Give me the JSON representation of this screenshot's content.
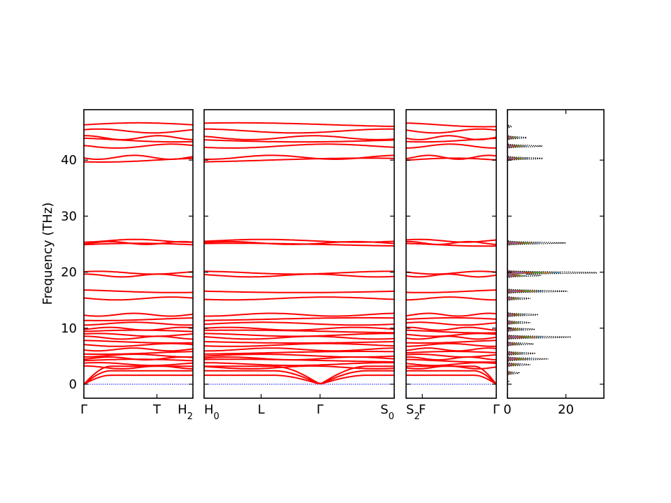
{
  "chart_data": {
    "type": "line",
    "ylabel": "Frequency (THz)",
    "ylim": [
      -2.5,
      49
    ],
    "yticks": [
      0,
      10,
      20,
      30,
      40
    ],
    "colors": {
      "band": "#ff0000",
      "zero_line": "#0000ff",
      "dos_series": [
        "#1f77b4",
        "#ff7f0e",
        "#2ca02c",
        "#d62728",
        "#9467bd",
        "#8c564b"
      ],
      "dos_total": "#000000"
    },
    "band_panels": [
      {
        "name": "Γ-T-H2",
        "path_labels": [
          {
            "pos": 0.0,
            "main": "Γ",
            "sub": ""
          },
          {
            "pos": 0.67,
            "main": "T",
            "sub": ""
          },
          {
            "pos": 1.0,
            "main": "H",
            "sub": "2"
          }
        ]
      },
      {
        "name": "H0-L-Γ-S0",
        "path_labels": [
          {
            "pos": 0.0,
            "main": "H",
            "sub": "0"
          },
          {
            "pos": 0.3,
            "main": "L",
            "sub": ""
          },
          {
            "pos": 0.61,
            "main": "Γ",
            "sub": ""
          },
          {
            "pos": 1.0,
            "main": "S",
            "sub": "0"
          }
        ]
      },
      {
        "name": "S2-F-Γ",
        "path_labels": [
          {
            "pos": 0.0,
            "main": "S",
            "sub": "2"
          },
          {
            "pos": 0.18,
            "main": "F",
            "sub": ""
          },
          {
            "pos": 1.0,
            "main": "Γ",
            "sub": ""
          }
        ]
      }
    ],
    "optical_bands_THz": [
      46.3,
      45.2,
      44.0,
      43.6,
      42.5,
      40.5,
      40.0,
      25.6,
      25.2,
      24.9,
      19.9,
      19.4,
      16.6,
      15.3,
      12.4,
      11.6,
      10.8,
      9.9,
      9.4,
      8.8,
      8.3,
      7.6,
      7.0,
      6.2,
      5.6,
      5.1,
      4.6,
      4.2,
      3.6,
      3.0
    ],
    "acoustic_bands_THz_at_zone_edge": [
      1.6,
      2.4,
      3.2
    ],
    "dos": {
      "xlim": [
        0,
        33
      ],
      "xticks": [
        0,
        20
      ],
      "total_peaks": [
        {
          "f": 46.0,
          "d": 1.5
        },
        {
          "f": 44.0,
          "d": 7.0
        },
        {
          "f": 42.5,
          "d": 12.0
        },
        {
          "f": 40.3,
          "d": 13.0
        },
        {
          "f": 25.2,
          "d": 20.0
        },
        {
          "f": 19.9,
          "d": 33.0
        },
        {
          "f": 19.4,
          "d": 12.0
        },
        {
          "f": 16.6,
          "d": 22.0
        },
        {
          "f": 15.3,
          "d": 8.0
        },
        {
          "f": 12.4,
          "d": 11.0
        },
        {
          "f": 11.0,
          "d": 8.0
        },
        {
          "f": 9.8,
          "d": 10.0
        },
        {
          "f": 8.4,
          "d": 22.0
        },
        {
          "f": 7.2,
          "d": 9.0
        },
        {
          "f": 5.5,
          "d": 10.0
        },
        {
          "f": 4.5,
          "d": 14.0
        },
        {
          "f": 3.5,
          "d": 8.0
        },
        {
          "f": 2.0,
          "d": 4.0
        },
        {
          "f": 0.5,
          "d": 0.5
        }
      ]
    }
  }
}
